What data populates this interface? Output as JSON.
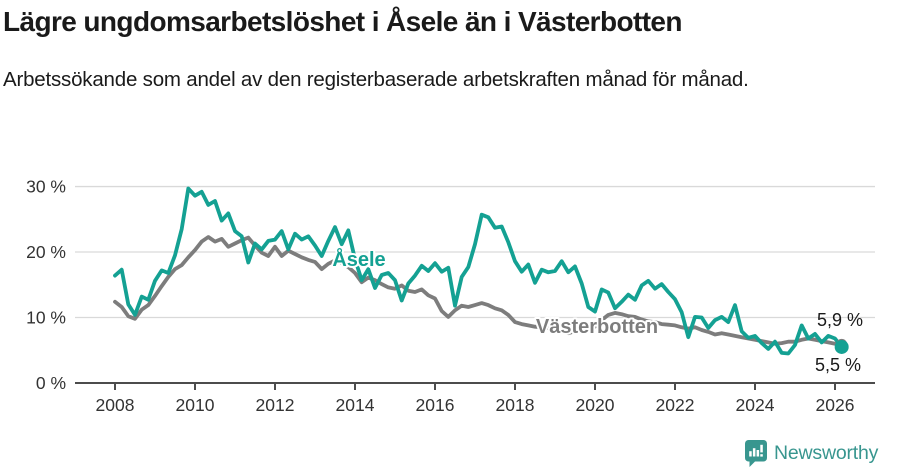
{
  "header": {
    "title": "Lägre ungdomsarbetslöshet i Åsele än i Västerbotten",
    "subtitle": "Arbetssökande som andel av den registerbaserade arbetskraften månad för månad."
  },
  "footer": {
    "brand": "Newsworthy"
  },
  "colors": {
    "asele": "#14a193",
    "vasterbotten": "#7d7d7d",
    "gridline": "#d9d9d9",
    "axis": "#4c4c4c",
    "text": "#1a1a1a",
    "brand_teal": "#38968f"
  },
  "chart_data": {
    "type": "line",
    "title": "Lägre ungdomsarbetslöshet i Åsele än i Västerbotten",
    "xlabel": "",
    "ylabel": "",
    "x_start": 2008,
    "x_step": 0.1666667,
    "xlim": [
      2007,
      2027
    ],
    "ylim": [
      0,
      31
    ],
    "x_ticks": [
      2008,
      2010,
      2012,
      2014,
      2016,
      2018,
      2020,
      2022,
      2024,
      2026
    ],
    "y_ticks": [
      0,
      10,
      20,
      30
    ],
    "y_suffix": " %",
    "grid": "horizontal",
    "legend_position": "inline-labels",
    "series": [
      {
        "id": "vasterbotten",
        "name": "Västerbotten",
        "color": "#7d7d7d",
        "end_dot_radius": 5.5,
        "label_pos": {
          "year": 2020.05,
          "value": 7.6
        },
        "values": [
          12.4,
          11.6,
          10.2,
          9.8,
          11.2,
          11.9,
          13.3,
          14.8,
          16.2,
          17.4,
          18.0,
          19.2,
          20.3,
          21.6,
          22.3,
          21.6,
          22.0,
          20.8,
          21.3,
          21.8,
          22.2,
          21.0,
          19.9,
          19.4,
          20.8,
          19.4,
          20.2,
          19.7,
          19.2,
          18.8,
          18.5,
          17.4,
          18.2,
          18.7,
          18.3,
          17.7,
          16.8,
          15.4,
          16.1,
          15.7,
          15.1,
          14.6,
          14.4,
          14.9,
          14.1,
          13.9,
          14.3,
          13.4,
          12.9,
          11.0,
          10.1,
          11.1,
          11.8,
          11.6,
          11.9,
          12.2,
          11.9,
          11.4,
          11.1,
          10.4,
          9.3,
          9.0,
          8.8,
          8.6,
          8.5,
          8.4,
          8.4,
          7.9,
          7.6,
          7.9,
          8.2,
          8.4,
          8.6,
          9.6,
          10.4,
          10.7,
          10.5,
          10.2,
          10.1,
          9.7,
          9.4,
          9.3,
          9.0,
          8.9,
          8.8,
          8.5,
          8.3,
          8.5,
          8.1,
          7.8,
          7.4,
          7.6,
          7.4,
          7.2,
          7.0,
          6.8,
          6.6,
          6.4,
          6.2,
          6.0,
          6.1,
          6.3,
          6.3,
          6.6,
          6.8,
          6.6,
          6.4,
          6.2,
          6.0,
          5.9
        ]
      },
      {
        "id": "asele",
        "name": "Åsele",
        "color": "#14a193",
        "end_dot_radius": 7,
        "label_pos": {
          "year": 2014.1,
          "value": 17.9
        },
        "values": [
          16.4,
          17.3,
          12.0,
          10.4,
          13.2,
          12.7,
          15.6,
          17.2,
          16.8,
          19.5,
          23.5,
          29.7,
          28.6,
          29.2,
          27.2,
          27.8,
          24.8,
          25.9,
          23.2,
          22.4,
          18.4,
          21.3,
          20.4,
          21.7,
          21.9,
          23.2,
          20.4,
          22.8,
          21.9,
          22.4,
          21.0,
          19.4,
          21.7,
          23.8,
          21.2,
          23.3,
          18.9,
          15.7,
          17.4,
          14.5,
          16.5,
          16.8,
          15.7,
          12.6,
          15.2,
          16.4,
          17.9,
          17.1,
          18.3,
          17.0,
          17.6,
          11.8,
          16.2,
          17.7,
          21.2,
          25.7,
          25.3,
          23.7,
          23.9,
          21.5,
          18.6,
          17.0,
          18.1,
          15.3,
          17.3,
          16.9,
          17.1,
          18.6,
          16.9,
          17.8,
          15.2,
          11.6,
          10.9,
          14.3,
          13.8,
          11.4,
          12.4,
          13.5,
          12.7,
          14.9,
          15.6,
          14.4,
          15.1,
          13.9,
          12.8,
          10.8,
          7.0,
          10.1,
          10.0,
          8.4,
          9.6,
          10.1,
          9.3,
          11.9,
          7.9,
          6.9,
          7.2,
          6.1,
          5.2,
          6.3,
          4.6,
          4.5,
          5.8,
          8.8,
          6.8,
          7.5,
          6.2,
          7.2,
          6.8,
          5.5
        ]
      }
    ],
    "end_value_labels": [
      {
        "text": "5,9 %",
        "series": "Västerbotten",
        "year": 2025.55,
        "value": 8.7
      },
      {
        "text": "5,5 %",
        "series": "Åsele",
        "year": 2025.5,
        "value": 1.8
      }
    ]
  }
}
